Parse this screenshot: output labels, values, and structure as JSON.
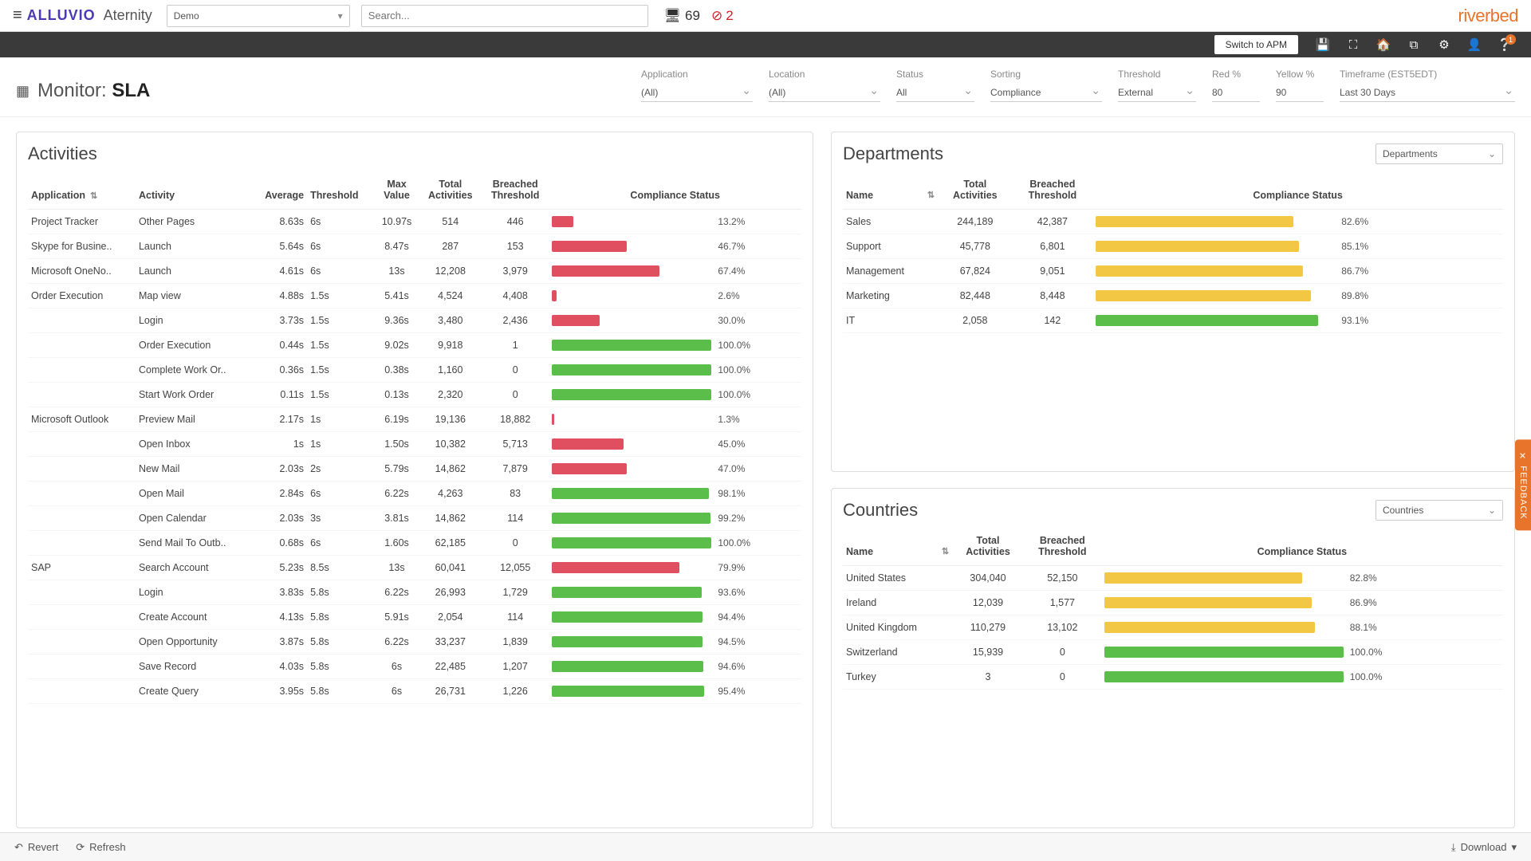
{
  "header": {
    "brand_alluvio": "ALLUVIO",
    "brand_aternity": "Aternity",
    "tenant": "Demo",
    "search_placeholder": "Search...",
    "monitor_count": "69",
    "alert_count": "2",
    "riverbed": "riverbed"
  },
  "darkbar": {
    "switch_label": "Switch to APM",
    "help_badge": "1"
  },
  "page": {
    "title_prefix": "Monitor: ",
    "title_bold": "SLA"
  },
  "filters": {
    "application": {
      "label": "Application",
      "value": "(All)"
    },
    "location": {
      "label": "Location",
      "value": "(All)"
    },
    "status": {
      "label": "Status",
      "value": "All"
    },
    "sorting": {
      "label": "Sorting",
      "value": "Compliance"
    },
    "threshold": {
      "label": "Threshold",
      "value": "External"
    },
    "red": {
      "label": "Red %",
      "value": "80"
    },
    "yellow": {
      "label": "Yellow %",
      "value": "90"
    },
    "timeframe": {
      "label": "Timeframe (EST5EDT)",
      "value": "Last 30 Days"
    }
  },
  "colors": {
    "red": "#e04f5f",
    "green": "#5bbd4a",
    "yellow": "#f2c744",
    "border": "#dddddd"
  },
  "activities": {
    "title": "Activities",
    "columns": [
      "Application",
      "Activity",
      "Average",
      "Threshold",
      "Max Value",
      "Total Activities",
      "Breached Threshold",
      "Compliance Status"
    ],
    "rows": [
      {
        "app": "Project Tracker",
        "act": "Other Pages",
        "avg": "8.63s",
        "th": "6s",
        "max": "10.97s",
        "tot": "514",
        "br": "446",
        "pct": 13.2,
        "color": "red"
      },
      {
        "app": "Skype for Busine..",
        "act": "Launch",
        "avg": "5.64s",
        "th": "6s",
        "max": "8.47s",
        "tot": "287",
        "br": "153",
        "pct": 46.7,
        "color": "red"
      },
      {
        "app": "Microsoft OneNo..",
        "act": "Launch",
        "avg": "4.61s",
        "th": "6s",
        "max": "13s",
        "tot": "12,208",
        "br": "3,979",
        "pct": 67.4,
        "color": "red"
      },
      {
        "app": "Order Execution",
        "act": "Map view",
        "avg": "4.88s",
        "th": "1.5s",
        "max": "5.41s",
        "tot": "4,524",
        "br": "4,408",
        "pct": 2.6,
        "color": "red"
      },
      {
        "app": "",
        "act": "Login",
        "avg": "3.73s",
        "th": "1.5s",
        "max": "9.36s",
        "tot": "3,480",
        "br": "2,436",
        "pct": 30.0,
        "color": "red"
      },
      {
        "app": "",
        "act": "Order Execution",
        "avg": "0.44s",
        "th": "1.5s",
        "max": "9.02s",
        "tot": "9,918",
        "br": "1",
        "pct": 100.0,
        "color": "green"
      },
      {
        "app": "",
        "act": "Complete Work Or..",
        "avg": "0.36s",
        "th": "1.5s",
        "max": "0.38s",
        "tot": "1,160",
        "br": "0",
        "pct": 100.0,
        "color": "green"
      },
      {
        "app": "",
        "act": "Start Work Order",
        "avg": "0.11s",
        "th": "1.5s",
        "max": "0.13s",
        "tot": "2,320",
        "br": "0",
        "pct": 100.0,
        "color": "green"
      },
      {
        "app": "Microsoft Outlook",
        "act": "Preview Mail",
        "avg": "2.17s",
        "th": "1s",
        "max": "6.19s",
        "tot": "19,136",
        "br": "18,882",
        "pct": 1.3,
        "color": "red"
      },
      {
        "app": "",
        "act": "Open Inbox",
        "avg": "1s",
        "th": "1s",
        "max": "1.50s",
        "tot": "10,382",
        "br": "5,713",
        "pct": 45.0,
        "color": "red"
      },
      {
        "app": "",
        "act": "New Mail",
        "avg": "2.03s",
        "th": "2s",
        "max": "5.79s",
        "tot": "14,862",
        "br": "7,879",
        "pct": 47.0,
        "color": "red"
      },
      {
        "app": "",
        "act": "Open Mail",
        "avg": "2.84s",
        "th": "6s",
        "max": "6.22s",
        "tot": "4,263",
        "br": "83",
        "pct": 98.1,
        "color": "green"
      },
      {
        "app": "",
        "act": "Open Calendar",
        "avg": "2.03s",
        "th": "3s",
        "max": "3.81s",
        "tot": "14,862",
        "br": "114",
        "pct": 99.2,
        "color": "green"
      },
      {
        "app": "",
        "act": "Send Mail To Outb..",
        "avg": "0.68s",
        "th": "6s",
        "max": "1.60s",
        "tot": "62,185",
        "br": "0",
        "pct": 100.0,
        "color": "green"
      },
      {
        "app": "SAP",
        "act": "Search Account",
        "avg": "5.23s",
        "th": "8.5s",
        "max": "13s",
        "tot": "60,041",
        "br": "12,055",
        "pct": 79.9,
        "color": "red"
      },
      {
        "app": "",
        "act": "Login",
        "avg": "3.83s",
        "th": "5.8s",
        "max": "6.22s",
        "tot": "26,993",
        "br": "1,729",
        "pct": 93.6,
        "color": "green"
      },
      {
        "app": "",
        "act": "Create Account",
        "avg": "4.13s",
        "th": "5.8s",
        "max": "5.91s",
        "tot": "2,054",
        "br": "114",
        "pct": 94.4,
        "color": "green"
      },
      {
        "app": "",
        "act": "Open Opportunity",
        "avg": "3.87s",
        "th": "5.8s",
        "max": "6.22s",
        "tot": "33,237",
        "br": "1,839",
        "pct": 94.5,
        "color": "green"
      },
      {
        "app": "",
        "act": "Save Record",
        "avg": "4.03s",
        "th": "5.8s",
        "max": "6s",
        "tot": "22,485",
        "br": "1,207",
        "pct": 94.6,
        "color": "green"
      },
      {
        "app": "",
        "act": "Create Query",
        "avg": "3.95s",
        "th": "5.8s",
        "max": "6s",
        "tot": "26,731",
        "br": "1,226",
        "pct": 95.4,
        "color": "green"
      }
    ]
  },
  "departments": {
    "title": "Departments",
    "dropdown": "Departments",
    "columns": [
      "Name",
      "Total Activities",
      "Breached Threshold",
      "Compliance Status"
    ],
    "rows": [
      {
        "name": "Sales",
        "tot": "244,189",
        "br": "42,387",
        "pct": 82.6,
        "color": "yellow"
      },
      {
        "name": "Support",
        "tot": "45,778",
        "br": "6,801",
        "pct": 85.1,
        "color": "yellow"
      },
      {
        "name": "Management",
        "tot": "67,824",
        "br": "9,051",
        "pct": 86.7,
        "color": "yellow"
      },
      {
        "name": "Marketing",
        "tot": "82,448",
        "br": "8,448",
        "pct": 89.8,
        "color": "yellow"
      },
      {
        "name": "IT",
        "tot": "2,058",
        "br": "142",
        "pct": 93.1,
        "color": "green"
      }
    ]
  },
  "countries": {
    "title": "Countries",
    "dropdown": "Countries",
    "columns": [
      "Name",
      "Total Activities",
      "Breached Threshold",
      "Compliance Status"
    ],
    "rows": [
      {
        "name": "United States",
        "tot": "304,040",
        "br": "52,150",
        "pct": 82.8,
        "color": "yellow"
      },
      {
        "name": "Ireland",
        "tot": "12,039",
        "br": "1,577",
        "pct": 86.9,
        "color": "yellow"
      },
      {
        "name": "United Kingdom",
        "tot": "110,279",
        "br": "13,102",
        "pct": 88.1,
        "color": "yellow"
      },
      {
        "name": "Switzerland",
        "tot": "15,939",
        "br": "0",
        "pct": 100.0,
        "color": "green"
      },
      {
        "name": "Turkey",
        "tot": "3",
        "br": "0",
        "pct": 100.0,
        "color": "green"
      }
    ]
  },
  "footer": {
    "revert": "Revert",
    "refresh": "Refresh",
    "download": "Download"
  },
  "feedback": "FEEDBACK"
}
